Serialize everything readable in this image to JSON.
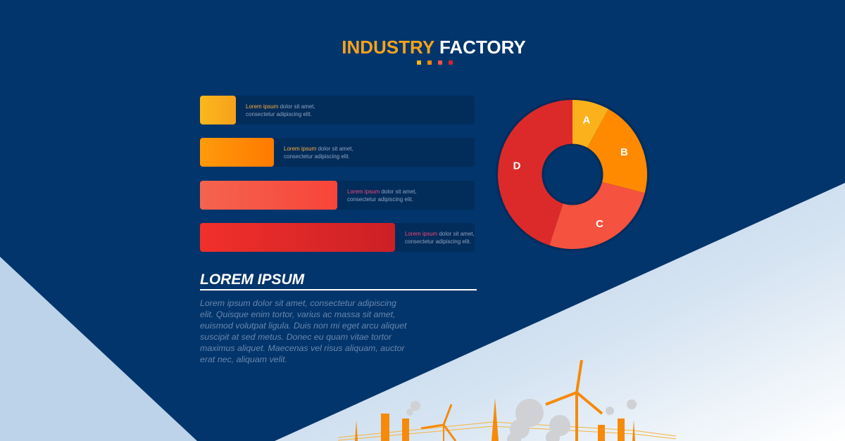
{
  "title": {
    "part1": "INDUSTRY",
    "part2": "FACTORY"
  },
  "colors": {
    "bg": "#02356b",
    "accent_yellow": "#f9b31c",
    "accent_orange": "#ff8a00",
    "accent_coral": "#f5523f",
    "accent_red": "#d9232a"
  },
  "chart_data": [
    {
      "type": "bar",
      "orientation": "horizontal",
      "values": [
        13,
        27,
        50,
        71
      ],
      "items": [
        {
          "highlight": "Lorem ipsum",
          "text": " dolor sit amet,",
          "text2": "consectetur adipiscing elit.",
          "color": "#f9b31c"
        },
        {
          "highlight": "Lorem ipsum",
          "text": " dolor sit amet,",
          "text2": "consectetur adipiscing elit.",
          "color": "#ff8a00"
        },
        {
          "highlight": "Lorem ipsum",
          "text": " dolor sit amet,",
          "text2": "consectetur adipiscing elit.",
          "color": "#f5523f"
        },
        {
          "highlight": "Lorem ipsum",
          "text": " dolor sit amet,",
          "text2": "consectetur adipiscing elit.",
          "color": "#d9232a"
        }
      ]
    },
    {
      "type": "pie",
      "donut": true,
      "slices": [
        {
          "label": "A",
          "value": 8,
          "color": "#fbb11b"
        },
        {
          "label": "B",
          "value": 21,
          "color": "#ff8a00"
        },
        {
          "label": "C",
          "value": 26,
          "color": "#f5523f"
        },
        {
          "label": "D",
          "value": 45,
          "color": "#dc2a2a"
        }
      ]
    }
  ],
  "section": {
    "heading": "LOREM IPSUM",
    "body": "Lorem ipsum dolor sit amet, consectetur adipiscing elit. Quisque enim tortor, varius ac massa sit amet, euismod volutpat ligula. Duis non mi eget arcu aliquet suscipit at sed metus. Donec eu quam vitae tortor maximus aliquet. Maecenas vel risus aliquam, auctor erat nec, aliquam velit."
  }
}
